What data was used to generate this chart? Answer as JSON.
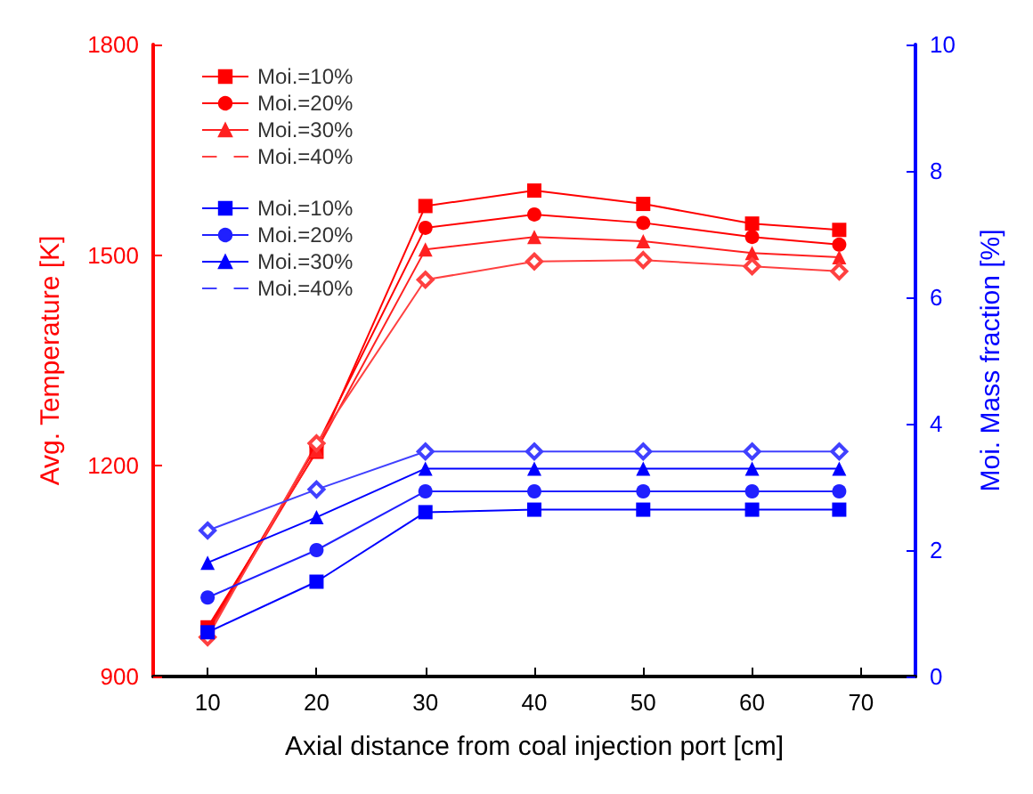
{
  "chart_data": {
    "type": "line",
    "xlabel": "Axial distance from coal injection port [cm]",
    "ylabel": "Avg. Temperature [K]",
    "y2label": "Moi. Mass fraction [%]",
    "x": [
      10,
      20,
      30,
      40,
      50,
      60,
      68
    ],
    "xlim": [
      5,
      75
    ],
    "xticks": [
      10,
      20,
      30,
      40,
      50,
      60,
      70
    ],
    "ylim": [
      900,
      1800
    ],
    "yticks": [
      900,
      1200,
      1500,
      1800
    ],
    "y2lim": [
      0,
      10
    ],
    "y2ticks": [
      0,
      2,
      4,
      6,
      8,
      10
    ],
    "legend": "top left",
    "grid": false,
    "series": [
      {
        "name": "Moi.=10%",
        "color": "#ff0000",
        "marker": "square",
        "values": [
          970,
          1220,
          1570,
          1592,
          1573,
          1545,
          1536
        ]
      },
      {
        "name": "Moi.=20%",
        "color": "#ff0000",
        "marker": "circle",
        "values": [
          965,
          1228,
          1539,
          1558,
          1546,
          1526,
          1515
        ]
      },
      {
        "name": "Moi.=30%",
        "color": "#ff2020",
        "marker": "triangle",
        "values": [
          962,
          1222,
          1508,
          1526,
          1520,
          1503,
          1497
        ]
      },
      {
        "name": "Moi.=40%",
        "color": "#ff4040",
        "marker": "diamond",
        "values": [
          956,
          1232,
          1465,
          1491,
          1493,
          1484,
          1477
        ]
      },
      {
        "name": "Moi.=10%",
        "color": "#0000ff",
        "marker": "square",
        "axis": "y2",
        "values": [
          0.7,
          1.5,
          2.6,
          2.64,
          2.64,
          2.64,
          2.64
        ]
      },
      {
        "name": "Moi.=20%",
        "color": "#2020ff",
        "marker": "circle",
        "axis": "y2",
        "values": [
          1.25,
          2.0,
          2.93,
          2.93,
          2.93,
          2.93,
          2.93
        ]
      },
      {
        "name": "Moi.=30%",
        "color": "#0000ff",
        "marker": "triangle",
        "axis": "y2",
        "values": [
          1.8,
          2.52,
          3.29,
          3.29,
          3.29,
          3.29,
          3.29
        ]
      },
      {
        "name": "Moi.=40%",
        "color": "#4040ff",
        "marker": "diamond",
        "axis": "y2",
        "values": [
          2.31,
          2.96,
          3.56,
          3.56,
          3.56,
          3.56,
          3.56
        ]
      }
    ]
  }
}
